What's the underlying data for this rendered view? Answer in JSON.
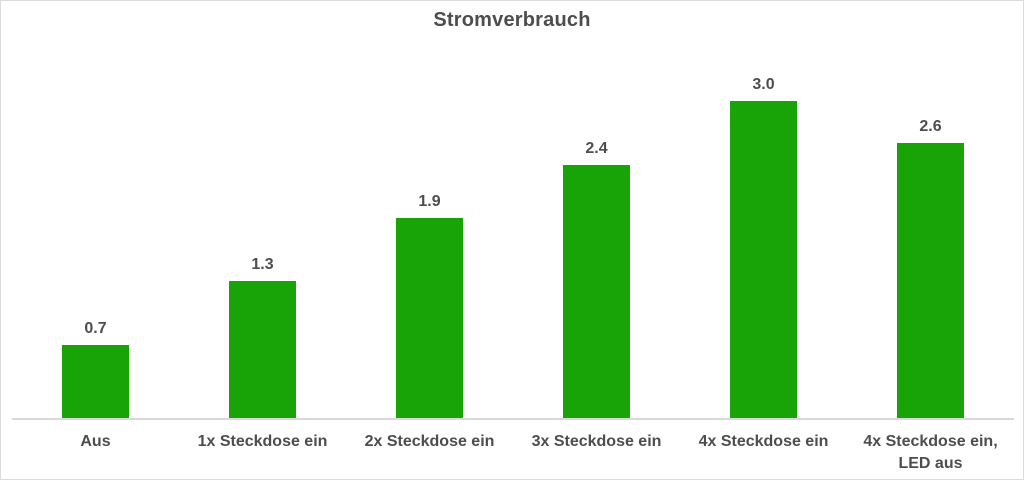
{
  "chart_data": {
    "type": "bar",
    "title": "Stromverbrauch",
    "categories": [
      "Aus",
      "1x Steckdose ein",
      "2x Steckdose ein",
      "3x Steckdose ein",
      "4x Steckdose ein",
      "4x Steckdose ein,\nLED aus"
    ],
    "values": [
      0.7,
      1.3,
      1.9,
      2.4,
      3.0,
      2.6
    ],
    "value_labels": [
      "0.7",
      "1.3",
      "1.9",
      "2.4",
      "3.0",
      "2.6"
    ],
    "xlabel": "",
    "ylabel": "",
    "ylim": [
      0,
      3.2
    ],
    "grid": false,
    "legend_position": "none",
    "colors": {
      "bar": "#18a306",
      "text": "#4d4d4d",
      "axis_line": "#d9d9d9",
      "background": "#ffffff"
    }
  }
}
